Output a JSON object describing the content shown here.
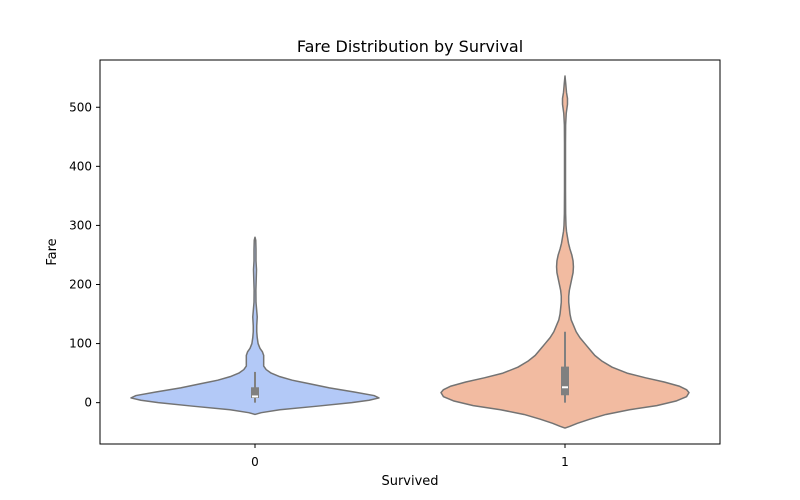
{
  "chart_data": {
    "type": "violin",
    "title": "Fare Distribution by Survival",
    "xlabel": "Survived",
    "ylabel": "Fare",
    "categories": [
      "0",
      "1"
    ],
    "ylim": [
      -70,
      580
    ],
    "yticks": [
      0,
      100,
      200,
      300,
      400,
      500
    ],
    "grid": false,
    "colors": {
      "0": "#b3c9f7",
      "1": "#f2bba1",
      "outline": "#737373",
      "box": "#808080",
      "median": "#ffffff"
    },
    "violins": [
      {
        "category": "0",
        "y_range": [
          -20,
          280
        ],
        "box": {
          "q1": 7.9,
          "median": 10.5,
          "q3": 26,
          "whisker_low": 0,
          "whisker_high": 52
        },
        "density": [
          [
            -20,
            0.0
          ],
          [
            -17,
            0.05
          ],
          [
            -12,
            0.2
          ],
          [
            -6,
            0.5
          ],
          [
            0,
            0.78
          ],
          [
            4,
            0.92
          ],
          [
            8,
            1.0
          ],
          [
            12,
            0.96
          ],
          [
            18,
            0.8
          ],
          [
            25,
            0.6
          ],
          [
            32,
            0.44
          ],
          [
            38,
            0.3
          ],
          [
            44,
            0.2
          ],
          [
            50,
            0.13
          ],
          [
            56,
            0.09
          ],
          [
            62,
            0.07
          ],
          [
            68,
            0.07
          ],
          [
            74,
            0.07
          ],
          [
            80,
            0.07
          ],
          [
            86,
            0.06
          ],
          [
            92,
            0.04
          ],
          [
            100,
            0.025
          ],
          [
            110,
            0.018
          ],
          [
            120,
            0.014
          ],
          [
            130,
            0.014
          ],
          [
            145,
            0.018
          ],
          [
            155,
            0.014
          ],
          [
            170,
            0.008
          ],
          [
            190,
            0.007
          ],
          [
            210,
            0.01
          ],
          [
            225,
            0.012
          ],
          [
            240,
            0.008
          ],
          [
            260,
            0.008
          ],
          [
            275,
            0.006
          ],
          [
            280,
            0.0
          ]
        ]
      },
      {
        "category": "1",
        "y_range": [
          -43,
          553
        ],
        "box": {
          "q1": 12.5,
          "median": 26,
          "q3": 61,
          "whisker_low": 0,
          "whisker_high": 120
        },
        "density": [
          [
            -43,
            0.0
          ],
          [
            -40,
            0.04
          ],
          [
            -35,
            0.1
          ],
          [
            -28,
            0.2
          ],
          [
            -20,
            0.33
          ],
          [
            -12,
            0.52
          ],
          [
            -5,
            0.74
          ],
          [
            3,
            0.9
          ],
          [
            10,
            0.98
          ],
          [
            17,
            1.0
          ],
          [
            22,
            0.98
          ],
          [
            28,
            0.92
          ],
          [
            35,
            0.8
          ],
          [
            42,
            0.65
          ],
          [
            50,
            0.5
          ],
          [
            60,
            0.38
          ],
          [
            70,
            0.3
          ],
          [
            80,
            0.24
          ],
          [
            90,
            0.2
          ],
          [
            100,
            0.16
          ],
          [
            110,
            0.12
          ],
          [
            120,
            0.09
          ],
          [
            130,
            0.07
          ],
          [
            140,
            0.05
          ],
          [
            150,
            0.04
          ],
          [
            160,
            0.035
          ],
          [
            170,
            0.03
          ],
          [
            180,
            0.03
          ],
          [
            190,
            0.035
          ],
          [
            200,
            0.045
          ],
          [
            210,
            0.055
          ],
          [
            220,
            0.065
          ],
          [
            230,
            0.068
          ],
          [
            240,
            0.065
          ],
          [
            250,
            0.055
          ],
          [
            260,
            0.04
          ],
          [
            270,
            0.028
          ],
          [
            280,
            0.02
          ],
          [
            290,
            0.012
          ],
          [
            300,
            0.008
          ],
          [
            320,
            0.005
          ],
          [
            360,
            0.004
          ],
          [
            400,
            0.004
          ],
          [
            440,
            0.004
          ],
          [
            470,
            0.005
          ],
          [
            490,
            0.01
          ],
          [
            505,
            0.02
          ],
          [
            515,
            0.02
          ],
          [
            525,
            0.012
          ],
          [
            540,
            0.006
          ],
          [
            553,
            0.0
          ]
        ]
      }
    ]
  }
}
